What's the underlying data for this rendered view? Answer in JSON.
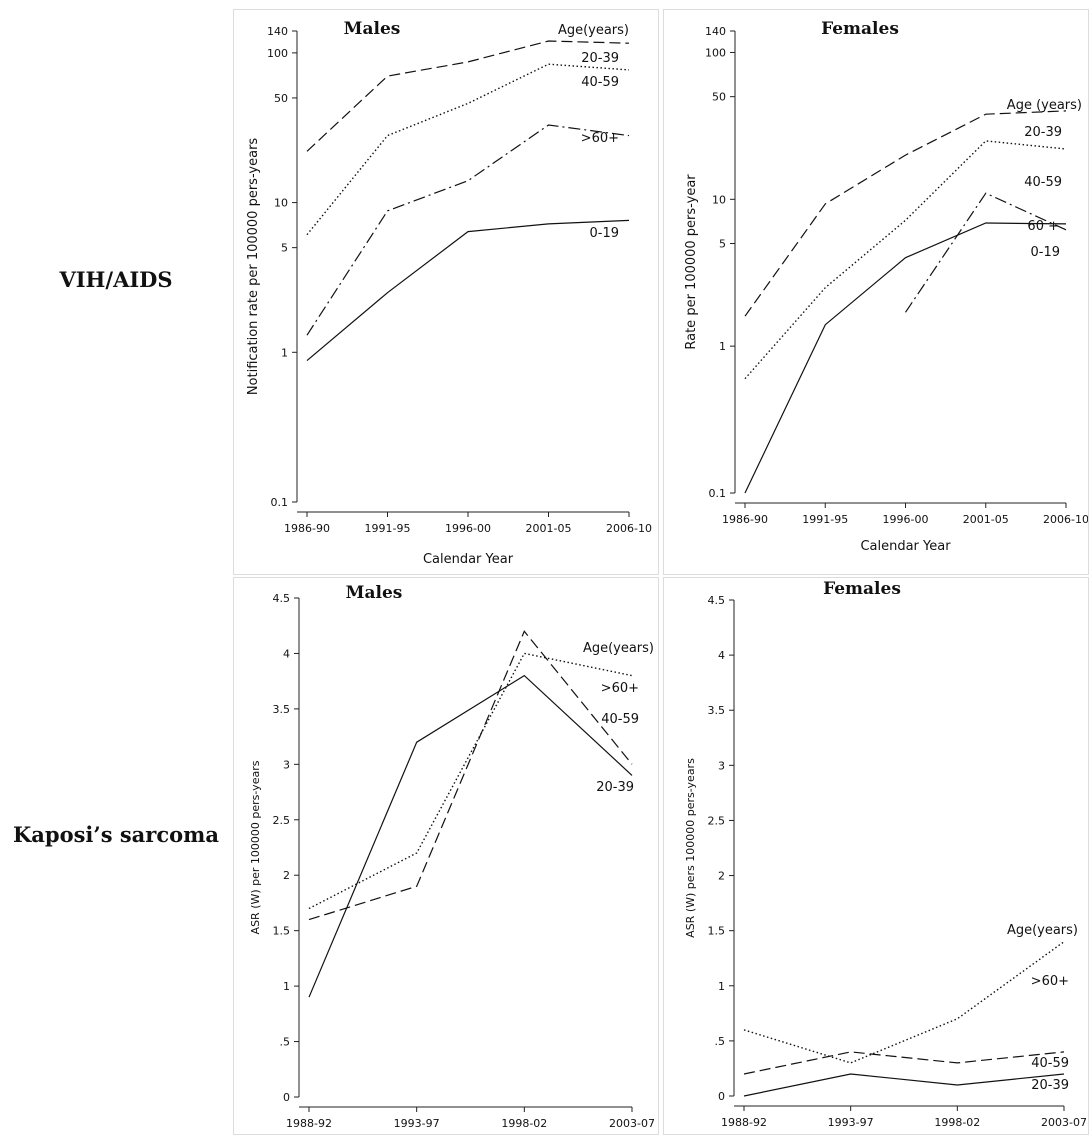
{
  "row_labels": {
    "hiv": "VIH/AIDS",
    "ks": "Kaposi’s sarcoma"
  },
  "chart_data": [
    {
      "id": "hiv-males",
      "type": "line",
      "title": "Males",
      "xlabel": "Calendar Year",
      "ylabel": "Notification rate per 100000 pers-years",
      "yscale": "log",
      "ylim": [
        0.1,
        140
      ],
      "yticks": [
        0.1,
        1,
        5,
        10,
        50,
        100,
        140
      ],
      "ytick_labels": [
        "0.1",
        "1",
        "5",
        "10",
        "50",
        "100",
        "140"
      ],
      "categories": [
        "1986-90",
        "1991-95",
        "1996-00",
        "2001-05",
        "2006-10"
      ],
      "legend_title": "Age(years)",
      "series": [
        {
          "name": "20-39",
          "dash": "long-dash",
          "values": [
            22,
            70,
            87,
            120,
            116
          ]
        },
        {
          "name": "40-59",
          "dash": "dot",
          "values": [
            6.1,
            28,
            46,
            84,
            77
          ]
        },
        {
          "name": ">60+",
          "dash": "dash-dot",
          "values": [
            1.3,
            8.8,
            14,
            33,
            28
          ]
        },
        {
          "name": "0-19",
          "dash": "solid",
          "values": [
            0.88,
            2.5,
            6.4,
            7.2,
            7.6
          ]
        }
      ]
    },
    {
      "id": "hiv-females",
      "type": "line",
      "title": "Females",
      "xlabel": "Calendar Year",
      "ylabel": "Rate per 100000 pers-year",
      "yscale": "log",
      "ylim": [
        0.1,
        140
      ],
      "yticks": [
        0.1,
        1,
        5,
        10,
        50,
        100,
        140
      ],
      "ytick_labels": [
        "0.1",
        "1",
        "5",
        "10",
        "50",
        "100",
        "140"
      ],
      "categories": [
        "1986-90",
        "1991-95",
        "1996-00",
        "2001-05",
        "2006-10"
      ],
      "legend_title": "Age (years)",
      "series": [
        {
          "name": "20-39",
          "dash": "long-dash",
          "values": [
            1.6,
            9.3,
            20,
            38,
            40
          ]
        },
        {
          "name": "40-59",
          "dash": "dot",
          "values": [
            0.6,
            2.5,
            7.2,
            25,
            22
          ]
        },
        {
          "name": "60 +",
          "dash": "dash-dot",
          "values": [
            null,
            null,
            1.7,
            11,
            6.2
          ]
        },
        {
          "name": "0-19",
          "dash": "solid",
          "values": [
            0.1,
            1.4,
            4.0,
            6.9,
            6.8
          ]
        }
      ]
    },
    {
      "id": "ks-males",
      "type": "line",
      "title": "Males",
      "xlabel": "",
      "ylabel": "ASR (W) per 100000 pers-years",
      "yscale": "linear",
      "ylim": [
        0,
        4.5
      ],
      "yticks": [
        0,
        0.5,
        1,
        1.5,
        2,
        2.5,
        3,
        3.5,
        4,
        4.5
      ],
      "ytick_labels": [
        "0",
        ".5",
        "1",
        "1.5",
        "2",
        "2.5",
        "3",
        "3.5",
        "4",
        "4.5"
      ],
      "categories": [
        "1988-92",
        "1993-97",
        "1998-02",
        "2003-07"
      ],
      "legend_title": "Age(years)",
      "series": [
        {
          "name": ">60+",
          "dash": "dot",
          "values": [
            1.7,
            2.2,
            4.0,
            3.8
          ]
        },
        {
          "name": "40-59",
          "dash": "long-dash",
          "values": [
            1.6,
            1.9,
            4.2,
            3.0
          ]
        },
        {
          "name": "20-39",
          "dash": "solid",
          "values": [
            0.9,
            3.2,
            3.8,
            2.9
          ]
        }
      ]
    },
    {
      "id": "ks-females",
      "type": "line",
      "title": "Females",
      "xlabel": "",
      "ylabel": "ASR (W) pers 100000 pers-years",
      "yscale": "linear",
      "ylim": [
        0,
        4.5
      ],
      "yticks": [
        0,
        0.5,
        1,
        1.5,
        2,
        2.5,
        3,
        3.5,
        4,
        4.5
      ],
      "ytick_labels": [
        "0",
        ".5",
        "1",
        "1.5",
        "2",
        "2.5",
        "3",
        "3.5",
        "4",
        "4.5"
      ],
      "categories": [
        "1988-92",
        "1993-97",
        "1998-02",
        "2003-07"
      ],
      "legend_title": "Age(years)",
      "series": [
        {
          "name": ">60+",
          "dash": "dot",
          "values": [
            0.6,
            0.3,
            0.7,
            1.4
          ]
        },
        {
          "name": "40-59",
          "dash": "long-dash",
          "values": [
            0.2,
            0.4,
            0.3,
            0.4
          ]
        },
        {
          "name": "20-39",
          "dash": "solid",
          "values": [
            0.0,
            0.2,
            0.1,
            0.2
          ]
        }
      ]
    }
  ]
}
